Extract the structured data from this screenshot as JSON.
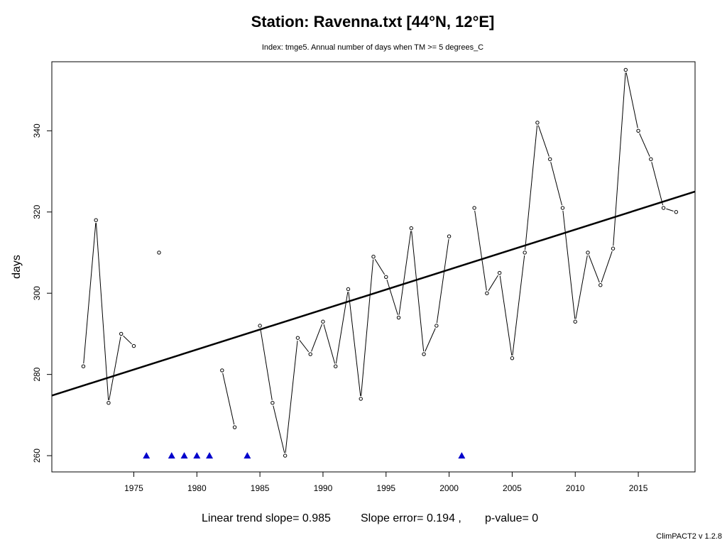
{
  "chart_data": {
    "type": "line",
    "title": "Station: Ravenna.txt [44°N, 12°E]",
    "subtitle": "Index: tmge5. Annual number of days when TM >= 5 degrees_C",
    "xlabel": "",
    "ylabel": "days",
    "xlim": [
      1968.5,
      2019.5
    ],
    "ylim": [
      256,
      357
    ],
    "xticks": [
      1975,
      1980,
      1985,
      1990,
      1995,
      2000,
      2005,
      2010,
      2015
    ],
    "yticks": [
      260,
      280,
      300,
      320,
      340
    ],
    "series": [
      {
        "name": "tmge5",
        "x": [
          1971,
          1972,
          1973,
          1974,
          1975,
          1976,
          1977,
          1978,
          1979,
          1980,
          1981,
          1982,
          1983,
          1984,
          1985,
          1986,
          1987,
          1988,
          1989,
          1990,
          1991,
          1992,
          1993,
          1994,
          1995,
          1996,
          1997,
          1998,
          1999,
          2000,
          2001,
          2002,
          2003,
          2004,
          2005,
          2006,
          2007,
          2008,
          2009,
          2010,
          2011,
          2012,
          2013,
          2014,
          2015,
          2016,
          2017,
          2018
        ],
        "values": [
          282,
          318,
          273,
          290,
          287,
          null,
          310,
          null,
          null,
          null,
          null,
          281,
          267,
          null,
          292,
          273,
          260,
          289,
          285,
          293,
          282,
          301,
          274,
          309,
          304,
          294,
          316,
          285,
          292,
          314,
          null,
          321,
          300,
          305,
          284,
          310,
          342,
          333,
          321,
          293,
          310,
          302,
          311,
          355,
          340,
          333,
          321,
          320
        ]
      }
    ],
    "missing_years": [
      1976,
      1978,
      1979,
      1980,
      1981,
      1984,
      2001
    ],
    "missing_marker_value": 260,
    "trend": {
      "intercept_at_1968_5": 274.8,
      "slope": 0.985
    },
    "colors": {
      "line": "#000000",
      "missing_marker": "#0000cc",
      "trend": "#000000"
    },
    "footer": {
      "slope_text": "Linear trend slope= 0.985",
      "error_text": "Slope error= 0.194 ,",
      "pvalue_text": "p-value= 0"
    },
    "credit": "ClimPACT2 v 1.2.8"
  }
}
